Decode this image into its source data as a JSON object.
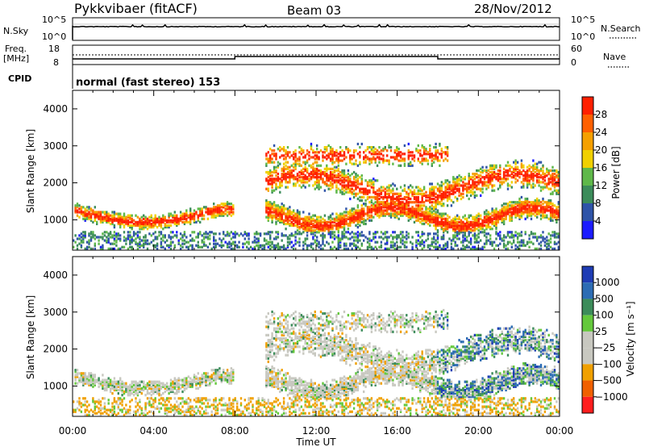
{
  "header": {
    "title": "Pykkvibaer (fitACF)",
    "beam": "Beam 03",
    "date": "28/Nov/2012"
  },
  "panels": {
    "nsky": {
      "left_label": "N.Sky",
      "right_label": "N.Search",
      "left_ticks": [
        "10^5",
        "10^0"
      ],
      "right_ticks": [
        "10^5",
        "10^0"
      ]
    },
    "freq": {
      "left_label_1": "Freq.",
      "left_label_2": "[MHz]",
      "left_ticks": [
        "18",
        "8"
      ],
      "right_label": "Nave",
      "right_ticks": [
        "60",
        "0"
      ]
    },
    "cpid": {
      "label": "CPID",
      "value": "normal (fast stereo) 153"
    }
  },
  "chart_data": [
    {
      "type": "heatmap",
      "title": "",
      "xlabel": "Time UT",
      "ylabel": "Slant Range [km]",
      "x_ticks": [
        "00:00",
        "04:00",
        "08:00",
        "12:00",
        "16:00",
        "20:00",
        "00:00"
      ],
      "y_ticks": [
        1000,
        2000,
        3000,
        4000
      ],
      "xlim_hours": [
        0,
        24
      ],
      "ylim_km": [
        180,
        4500
      ],
      "colorbar": {
        "label": "Power [dB]",
        "ticks": [
          4,
          8,
          12,
          16,
          20,
          24,
          28
        ],
        "colors": [
          "#1c1cff",
          "#2f54a8",
          "#3c8c5a",
          "#5fb84a",
          "#f0d000",
          "#f5a000",
          "#ff6000",
          "#ff2000"
        ]
      }
    },
    {
      "type": "heatmap",
      "title": "",
      "xlabel": "Time UT",
      "ylabel": "Slant Range [km]",
      "x_ticks": [
        "00:00",
        "04:00",
        "08:00",
        "12:00",
        "16:00",
        "20:00",
        "00:00"
      ],
      "y_ticks": [
        1000,
        2000,
        3000,
        4000
      ],
      "xlim_hours": [
        0,
        24
      ],
      "ylim_km": [
        180,
        4500
      ],
      "colorbar": {
        "label": "Velocity [m s⁻¹]",
        "ticks": [
          "1000",
          "500",
          "100",
          "25",
          "−25",
          "−100",
          "−500",
          "−1000"
        ],
        "colors": [
          "#1e3cb4",
          "#2c6cb4",
          "#3c8c5a",
          "#64c83c",
          "#c8c8c0",
          "#c8c8c0",
          "#f0a000",
          "#f06000",
          "#ff1e1e"
        ]
      }
    }
  ]
}
